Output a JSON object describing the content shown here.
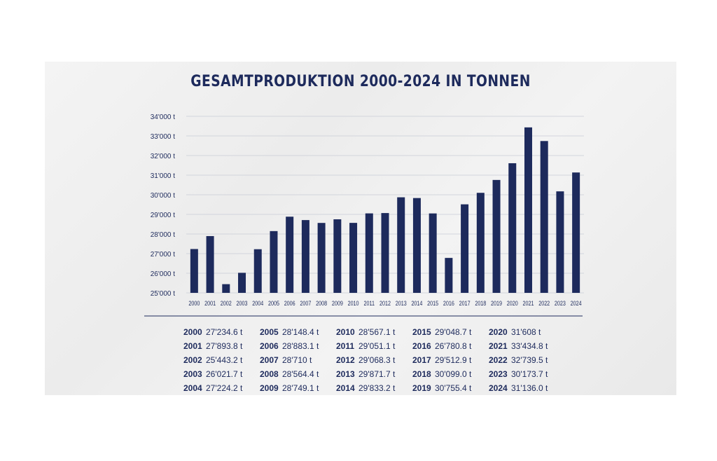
{
  "chart_data": {
    "type": "bar",
    "title": "GESAMTPRODUKTION 2000-2024 IN TONNEN",
    "categories": [
      "2000",
      "2001",
      "2002",
      "2003",
      "2004",
      "2005",
      "2006",
      "2007",
      "2008",
      "2009",
      "2010",
      "2011",
      "2012",
      "2013",
      "2014",
      "2015",
      "2016",
      "2017",
      "2018",
      "2019",
      "2020",
      "2021",
      "2022",
      "2023",
      "2024"
    ],
    "values": [
      27234.6,
      27893.8,
      25443.2,
      26021.7,
      27224.2,
      28148.4,
      28883.1,
      28710,
      28564.4,
      28749.1,
      28567.1,
      29051.1,
      29068.3,
      29871.7,
      29833.2,
      29048.7,
      26780.8,
      29512.9,
      30099.0,
      30755.4,
      31608,
      33434.8,
      32739.5,
      30173.7,
      31136.0
    ],
    "ylim": [
      25000,
      34000
    ],
    "yticks": [
      "25'000 t",
      "26'000 t",
      "27'000 t",
      "28'000 t",
      "29'000 t",
      "30'000 t",
      "31'000 t",
      "32'000 t",
      "33'000 t",
      "34'000 t"
    ],
    "grid": true,
    "bar_color": "#1d2a5c"
  },
  "table": {
    "columns": [
      [
        {
          "year": "2000",
          "value": "27'234.6 t"
        },
        {
          "year": "2001",
          "value": "27'893.8 t"
        },
        {
          "year": "2002",
          "value": "25'443.2 t"
        },
        {
          "year": "2003",
          "value": "26'021.7 t"
        },
        {
          "year": "2004",
          "value": "27'224.2 t"
        }
      ],
      [
        {
          "year": "2005",
          "value": "28'148.4 t"
        },
        {
          "year": "2006",
          "value": "28'883.1 t"
        },
        {
          "year": "2007",
          "value": "28'710 t"
        },
        {
          "year": "2008",
          "value": "28'564.4 t"
        },
        {
          "year": "2009",
          "value": "28'749.1 t"
        }
      ],
      [
        {
          "year": "2010",
          "value": "28'567.1 t"
        },
        {
          "year": "2011",
          "value": "29'051.1 t"
        },
        {
          "year": "2012",
          "value": "29'068.3 t"
        },
        {
          "year": "2013",
          "value": "29'871.7 t"
        },
        {
          "year": "2014",
          "value": "29'833.2 t"
        }
      ],
      [
        {
          "year": "2015",
          "value": "29'048.7 t"
        },
        {
          "year": "2016",
          "value": "26'780.8 t"
        },
        {
          "year": "2017",
          "value": "29'512.9 t"
        },
        {
          "year": "2018",
          "value": "30'099.0 t"
        },
        {
          "year": "2019",
          "value": "30'755.4 t"
        }
      ],
      [
        {
          "year": "2020",
          "value": "31'608 t"
        },
        {
          "year": "2021",
          "value": "33'434.8 t"
        },
        {
          "year": "2022",
          "value": "32'739.5 t"
        },
        {
          "year": "2023",
          "value": "30'173.7 t"
        },
        {
          "year": "2024",
          "value": "31'136.0 t"
        }
      ]
    ]
  }
}
